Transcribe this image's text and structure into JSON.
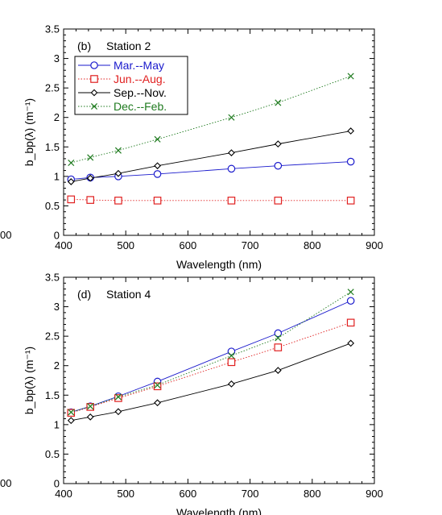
{
  "colors": {
    "mar_may": "#1a1acc",
    "jun_aug": "#e02020",
    "sep_nov": "#000000",
    "dec_feb": "#1e7a1e"
  },
  "left_edge_tick": "00",
  "chart_data": [
    {
      "type": "line",
      "panel_label": "(b)",
      "title": "Station 2",
      "xlabel": "Wavelength (nm)",
      "ylabel": "b_bp(λ) (m⁻¹)",
      "xlim": [
        400,
        900
      ],
      "ylim": [
        0,
        3.5
      ],
      "x_ticks": [
        "400",
        "500",
        "600",
        "700",
        "800",
        "900"
      ],
      "y_ticks": [
        "0",
        "0.5",
        "1",
        "1.5",
        "2",
        "2.5",
        "3",
        "3.5"
      ],
      "legend": "top-left",
      "x": [
        412,
        443,
        488,
        551,
        670,
        745,
        862
      ],
      "series": [
        {
          "name": "Mar.--May",
          "marker": "circle",
          "line": "solid",
          "values": [
            0.95,
            0.98,
            1.0,
            1.04,
            1.13,
            1.18,
            1.25
          ]
        },
        {
          "name": "Jun.--Aug.",
          "marker": "square",
          "line": "dotted",
          "values": [
            0.61,
            0.6,
            0.59,
            0.59,
            0.59,
            0.59,
            0.59
          ]
        },
        {
          "name": "Sep.--Nov.",
          "marker": "diamond",
          "line": "solid",
          "values": [
            0.91,
            0.97,
            1.05,
            1.18,
            1.4,
            1.55,
            1.77
          ]
        },
        {
          "name": "Dec.--Feb.",
          "marker": "x",
          "line": "dotted",
          "values": [
            1.23,
            1.32,
            1.44,
            1.63,
            2.0,
            2.25,
            2.7
          ]
        }
      ]
    },
    {
      "type": "line",
      "panel_label": "(d)",
      "title": "Station 4",
      "xlabel": "Wavelength (nm)",
      "ylabel": "b_bp(λ) (m⁻¹)",
      "xlim": [
        400,
        900
      ],
      "ylim": [
        0,
        3.5
      ],
      "x_ticks": [
        "400",
        "500",
        "600",
        "700",
        "800",
        "900"
      ],
      "y_ticks": [
        "0",
        "0.5",
        "1",
        "1.5",
        "2",
        "2.5",
        "3",
        "3.5"
      ],
      "legend": "none",
      "x": [
        412,
        443,
        488,
        551,
        670,
        745,
        862
      ],
      "series": [
        {
          "marker": "circle",
          "line": "solid",
          "values": [
            1.21,
            1.31,
            1.48,
            1.73,
            2.24,
            2.55,
            3.1
          ]
        },
        {
          "marker": "square",
          "line": "dotted",
          "values": [
            1.2,
            1.3,
            1.45,
            1.65,
            2.06,
            2.31,
            2.73
          ]
        },
        {
          "marker": "diamond",
          "line": "solid",
          "values": [
            1.07,
            1.13,
            1.22,
            1.37,
            1.69,
            1.92,
            2.38
          ]
        },
        {
          "marker": "x",
          "line": "dotted",
          "values": [
            1.21,
            1.31,
            1.47,
            1.67,
            2.17,
            2.47,
            3.25
          ]
        }
      ]
    }
  ]
}
